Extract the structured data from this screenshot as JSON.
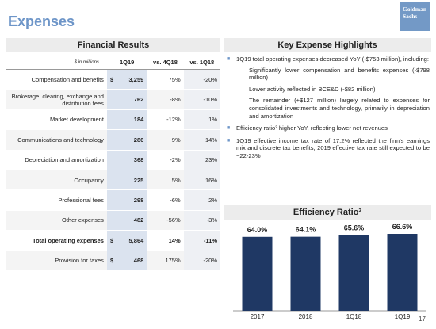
{
  "header": {
    "title": "Expenses",
    "logo": "Goldman Sachs"
  },
  "financial_results": {
    "title": "Financial Results",
    "columns": [
      "$ in millions",
      "1Q19",
      "vs. 4Q18",
      "vs. 1Q18"
    ],
    "rows": [
      {
        "label": "Compensation and benefits",
        "currency": "$",
        "value": "3,259",
        "vs_4q18": "75%",
        "vs_1q18": "-20%"
      },
      {
        "label": "Brokerage, clearing, exchange and distribution fees",
        "value": "762",
        "vs_4q18": "-8%",
        "vs_1q18": "-10%"
      },
      {
        "label": "Market development",
        "value": "184",
        "vs_4q18": "-12%",
        "vs_1q18": "1%"
      },
      {
        "label": "Communications and technology",
        "value": "286",
        "vs_4q18": "9%",
        "vs_1q18": "14%"
      },
      {
        "label": "Depreciation and amortization",
        "value": "368",
        "vs_4q18": "-2%",
        "vs_1q18": "23%"
      },
      {
        "label": "Occupancy",
        "value": "225",
        "vs_4q18": "5%",
        "vs_1q18": "16%"
      },
      {
        "label": "Professional fees",
        "value": "298",
        "vs_4q18": "-6%",
        "vs_1q18": "2%"
      },
      {
        "label": "Other expenses",
        "value": "482",
        "vs_4q18": "-56%",
        "vs_1q18": "-3%"
      },
      {
        "label": "Total operating expenses",
        "currency": "$",
        "value": "5,864",
        "vs_4q18": "14%",
        "vs_1q18": "-11%"
      },
      {
        "label": "Provision for taxes",
        "currency": "$",
        "value": "468",
        "vs_4q18": "175%",
        "vs_1q18": "-20%"
      }
    ]
  },
  "highlights": {
    "title": "Key Expense Highlights",
    "bullets": [
      {
        "text": "1Q19 total operating expenses decreased YoY (-$753 million), including:",
        "subs": [
          "Significantly lower compensation and benefits expenses (-$798 million)",
          "Lower activity reflected in BCE&D (-$82 million)",
          "The remainder (+$127 million) largely related to expenses for consolidated investments and technology, primarily in depreciation and amortization"
        ]
      },
      {
        "text": "Efficiency ratio³ higher YoY, reflecting lower net revenues"
      },
      {
        "text": "1Q19 effective income tax rate of 17.2% reflected the firm’s earnings mix and discrete tax benefits; 2019 effective tax rate still expected to be ~22-23%"
      }
    ]
  },
  "chart_data": {
    "type": "bar",
    "title": "Efficiency Ratio³",
    "categories": [
      "2017",
      "2018",
      "1Q18",
      "1Q19"
    ],
    "values": [
      64.0,
      64.1,
      65.6,
      66.6
    ],
    "value_labels": [
      "64.0%",
      "64.1%",
      "65.6%",
      "66.6%"
    ],
    "color": "#1f3864"
  },
  "page_number": "17"
}
